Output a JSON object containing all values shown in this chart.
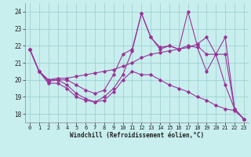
{
  "xlabel": "Windchill (Refroidissement éolien,°C)",
  "background_color": "#c8eeee",
  "line_color": "#993399",
  "grid_color": "#99cccc",
  "xlim": [
    -0.5,
    23.5
  ],
  "ylim": [
    17.5,
    24.5
  ],
  "yticks": [
    18,
    19,
    20,
    21,
    22,
    23,
    24
  ],
  "xticks": [
    0,
    1,
    2,
    3,
    4,
    5,
    6,
    7,
    8,
    9,
    10,
    11,
    12,
    13,
    14,
    15,
    16,
    17,
    18,
    19,
    20,
    21,
    22,
    23
  ],
  "lines": [
    {
      "x": [
        0,
        1,
        2,
        3,
        4,
        5,
        6,
        7,
        8,
        9,
        10,
        11,
        12,
        13,
        14,
        15,
        16,
        17,
        18,
        19,
        20,
        21,
        22,
        23
      ],
      "y": [
        21.8,
        20.5,
        20.0,
        20.1,
        20.1,
        20.2,
        20.3,
        20.4,
        20.5,
        20.6,
        20.8,
        21.0,
        21.3,
        21.5,
        21.6,
        21.7,
        21.8,
        21.9,
        22.1,
        22.5,
        21.5,
        19.7,
        18.3,
        17.7
      ]
    },
    {
      "x": [
        0,
        1,
        2,
        3,
        4,
        5,
        6,
        7,
        8,
        9,
        10,
        11,
        12,
        13,
        14,
        15,
        16,
        17,
        18,
        19,
        20,
        21,
        22,
        23
      ],
      "y": [
        21.8,
        20.5,
        20.0,
        20.0,
        20.0,
        19.7,
        19.4,
        19.2,
        19.4,
        20.3,
        21.5,
        21.8,
        23.9,
        22.5,
        21.8,
        22.0,
        21.8,
        24.0,
        22.0,
        21.5,
        21.5,
        22.5,
        18.3,
        17.7
      ]
    },
    {
      "x": [
        0,
        1,
        2,
        3,
        4,
        5,
        6,
        7,
        8,
        9,
        10,
        11,
        12,
        13,
        14,
        15,
        16,
        17,
        18,
        19,
        20,
        21,
        22,
        23
      ],
      "y": [
        21.8,
        20.5,
        19.9,
        20.0,
        19.7,
        19.2,
        18.9,
        18.7,
        19.0,
        19.5,
        20.3,
        21.7,
        23.9,
        22.5,
        21.9,
        22.0,
        21.8,
        22.0,
        21.9,
        20.5,
        21.5,
        21.5,
        18.3,
        17.7
      ]
    },
    {
      "x": [
        0,
        1,
        2,
        3,
        4,
        5,
        6,
        7,
        8,
        9,
        10,
        11,
        12,
        13,
        14,
        15,
        16,
        17,
        18,
        19,
        20,
        21,
        22,
        23
      ],
      "y": [
        21.8,
        20.5,
        19.8,
        19.8,
        19.5,
        19.0,
        18.8,
        18.7,
        18.8,
        19.3,
        20.0,
        20.5,
        20.3,
        20.3,
        20.0,
        19.7,
        19.5,
        19.3,
        19.0,
        18.8,
        18.5,
        18.3,
        18.2,
        17.7
      ]
    }
  ]
}
